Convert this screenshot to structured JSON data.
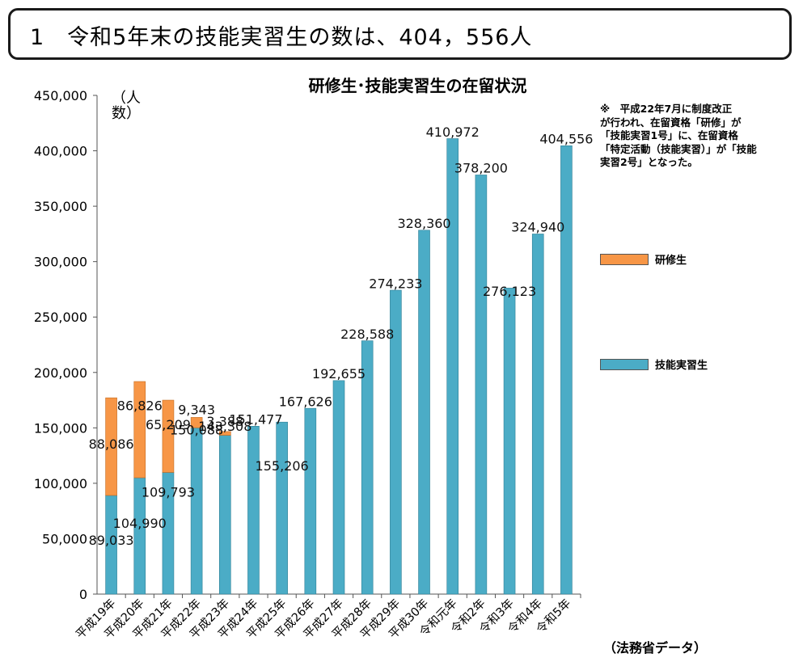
{
  "banner": {
    "title": "1　令和5年末の技能実習生の数は、404，556人"
  },
  "chart_data": {
    "type": "bar",
    "stacked": true,
    "title": "研修生･技能実習生の在留状況",
    "ylabel": "（人数）",
    "ylim": [
      0,
      450000
    ],
    "yticks": [
      "0",
      "50,000",
      "100,000",
      "150,000",
      "200,000",
      "250,000",
      "300,000",
      "350,000",
      "400,000",
      "450,000"
    ],
    "categories": [
      "平成19年",
      "平成20年",
      "平成21年",
      "平成22年",
      "平成23年",
      "平成24年",
      "平成25年",
      "平成26年",
      "平成27年",
      "平成28年",
      "平成29年",
      "平成30年",
      "令和元年",
      "令和2年",
      "令和3年",
      "令和4年",
      "令和5年"
    ],
    "series": [
      {
        "name": "技能実習生",
        "color": "#4bacc6",
        "values": [
          89033,
          104990,
          109793,
          150088,
          143308,
          151477,
          155206,
          167626,
          192655,
          228588,
          274233,
          328360,
          410972,
          378200,
          276123,
          324940,
          404556
        ],
        "labels": [
          "89,033",
          "104,990",
          "109,793",
          "150,088",
          "143,308",
          "151,477",
          "155,206",
          "167,626",
          "192,655",
          "228,588",
          "274,233",
          "328,360",
          "410,972",
          "378,200",
          "276,123",
          "324,940",
          "404,556"
        ]
      },
      {
        "name": "研修生",
        "color": "#f79646",
        "values": [
          88086,
          86826,
          65209,
          9343,
          3388,
          0,
          0,
          0,
          0,
          0,
          0,
          0,
          0,
          0,
          0,
          0,
          0
        ],
        "labels": [
          "88,086",
          "86,826",
          "65,209",
          "9,343",
          "3,388",
          "",
          "",
          "",
          "",
          "",
          "",
          "",
          "",
          "",
          "",
          "",
          ""
        ]
      }
    ],
    "legend": [
      "研修生",
      "技能実習生"
    ],
    "legend_position": "right",
    "note": "※　平成22年7月に制度改正\nが行われ、在留資格「研修」が\n「技能実習1号」に、在留資格\n「特定活動（技能実習）」が「技能\n実習2号」となった。",
    "source": "（法務省データ）"
  }
}
